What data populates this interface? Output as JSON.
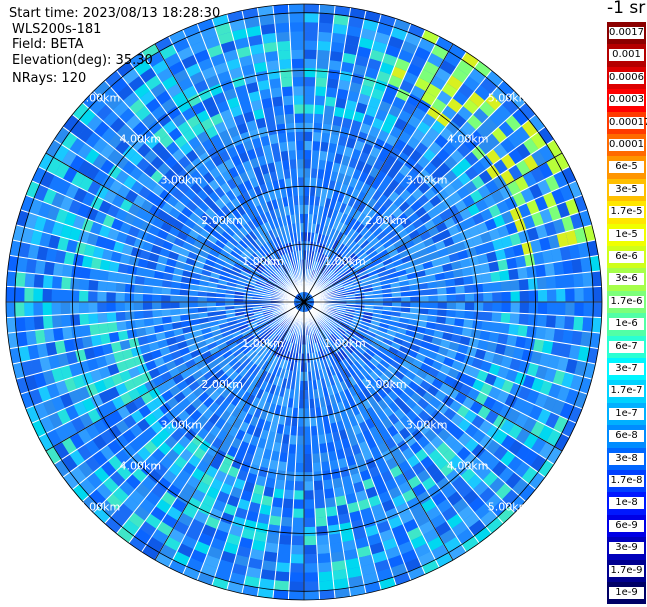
{
  "info": {
    "start_time": "Start time: 2023/08/13 18:28:30",
    "instrument": "WLS200s-181",
    "field": "Field: BETA",
    "elevation": "Elevation(deg): 35.30",
    "nrays": "NRays: 120"
  },
  "legend": {
    "title": "-1 sr",
    "entries": [
      {
        "label": "0.0017",
        "color": "#8b0000"
      },
      {
        "label": "0.001",
        "color": "#b40000"
      },
      {
        "label": "0.0006",
        "color": "#dc0000"
      },
      {
        "label": "0.0003",
        "color": "#ff0000"
      },
      {
        "label": "0.00017",
        "color": "#ff3a00"
      },
      {
        "label": "0.0001",
        "color": "#ff6a00"
      },
      {
        "label": "6e-5",
        "color": "#ff9500"
      },
      {
        "label": "3e-5",
        "color": "#ffbf00"
      },
      {
        "label": "1.7e-5",
        "color": "#ffe600"
      },
      {
        "label": "1e-5",
        "color": "#f0ff00"
      },
      {
        "label": "6e-6",
        "color": "#cfff1a"
      },
      {
        "label": "3e-6",
        "color": "#a6ff4a"
      },
      {
        "label": "1.7e-6",
        "color": "#7cff7a"
      },
      {
        "label": "1e-6",
        "color": "#52ffa6"
      },
      {
        "label": "6e-7",
        "color": "#2affd4"
      },
      {
        "label": "3e-7",
        "color": "#00f5ff"
      },
      {
        "label": "1.7e-7",
        "color": "#00d2ff"
      },
      {
        "label": "1e-7",
        "color": "#00b0ff"
      },
      {
        "label": "6e-8",
        "color": "#008cff"
      },
      {
        "label": "3e-8",
        "color": "#0066ff"
      },
      {
        "label": "1.7e-8",
        "color": "#0040ff"
      },
      {
        "label": "1e-8",
        "color": "#0018ff"
      },
      {
        "label": "6e-9",
        "color": "#0000e6"
      },
      {
        "label": "3e-9",
        "color": "#0000bb"
      },
      {
        "label": "1.7e-9",
        "color": "#00008f"
      },
      {
        "label": "1e-9",
        "color": "#000066"
      }
    ]
  },
  "range_rings": {
    "labels": [
      "1.00km",
      "2.00km",
      "3.00km",
      "4.00km",
      "5.00km"
    ],
    "values_km": [
      1,
      2,
      3,
      4,
      5
    ]
  },
  "scan": {
    "nrays": 120,
    "max_range_km": 5.15
  }
}
